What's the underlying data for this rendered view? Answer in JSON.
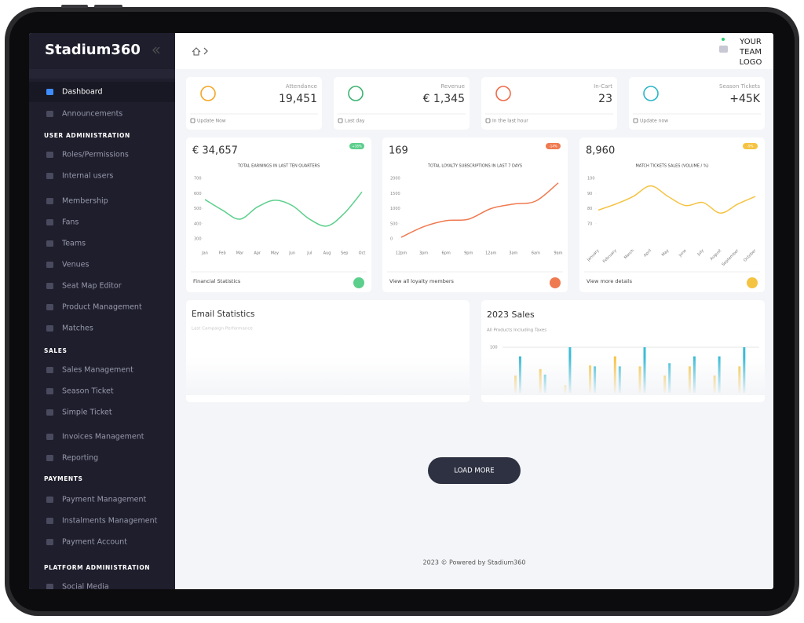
{
  "sidebar": {
    "logo": "Stadium360",
    "items": [
      {
        "label": "Dashboard",
        "active": true
      },
      {
        "label": "Announcements"
      },
      {
        "heading": "USER ADMINISTRATION"
      },
      {
        "label": "Roles/Permissions"
      },
      {
        "label": "Internal users"
      },
      {
        "label": "Membership"
      },
      {
        "label": "Fans"
      },
      {
        "label": "Teams"
      },
      {
        "label": "Venues"
      },
      {
        "label": "Seat Map Editor"
      },
      {
        "label": "Product Management"
      },
      {
        "label": "Matches"
      },
      {
        "heading": "SALES"
      },
      {
        "label": "Sales Management"
      },
      {
        "label": "Season Ticket"
      },
      {
        "label": "Simple Ticket"
      },
      {
        "label": "Invoices Management"
      },
      {
        "label": "Reporting"
      },
      {
        "heading": "PAYMENTS"
      },
      {
        "label": "Payment Management"
      },
      {
        "label": "Instalments Management"
      },
      {
        "label": "Payment Account"
      },
      {
        "heading": "PLATFORM ADMINISTRATION"
      },
      {
        "label": "Social Media"
      }
    ]
  },
  "topbar": {
    "logo_lines": [
      "YOUR",
      "TEAM",
      "LOGO"
    ]
  },
  "stat_cards": [
    {
      "label": "Attendance",
      "value": "19,451",
      "footer": "Update Now",
      "color": "#f5a623"
    },
    {
      "label": "Revenue",
      "value": "€ 1,345",
      "footer": "Last day",
      "color": "#3cb371"
    },
    {
      "label": "In-Cart",
      "value": "23",
      "footer": "In the last hour",
      "color": "#ef6b4a"
    },
    {
      "label": "Season Tickets",
      "value": "+45K",
      "footer": "Update now",
      "color": "#2bb5c9"
    }
  ],
  "chart_cards": [
    {
      "value": "€ 34,657",
      "badge": "+18%",
      "footer": "Financial Statistics"
    },
    {
      "value": "169",
      "badge": "-14%",
      "footer": "View all loyalty members"
    },
    {
      "value": "8,960",
      "badge": "-9%",
      "footer": "View more details"
    }
  ],
  "chart_data": [
    {
      "type": "line",
      "title": "TOTAL EARNINGS IN LAST TEN QUARTERS",
      "categories": [
        "Jan",
        "Feb",
        "Mar",
        "Apr",
        "May",
        "Jun",
        "Jul",
        "Aug",
        "Sep",
        "Oct"
      ],
      "values": [
        560,
        490,
        430,
        510,
        555,
        520,
        430,
        385,
        470,
        610
      ],
      "color": "#5ccf8c",
      "ylim": [
        300,
        700
      ],
      "yticks": [
        700,
        600,
        500,
        400,
        300
      ]
    },
    {
      "type": "line",
      "title": "TOTAL LOYALTY SUBSCRIPTIONS IN LAST 7 DAYS",
      "categories": [
        "12pm",
        "3pm",
        "6pm",
        "9pm",
        "12am",
        "3am",
        "6am",
        "9am"
      ],
      "values": [
        50,
        400,
        600,
        650,
        1000,
        1150,
        1250,
        1850
      ],
      "color": "#ef7a50",
      "ylim": [
        0,
        2000
      ],
      "yticks": [
        2000,
        1500,
        1000,
        500,
        0
      ]
    },
    {
      "type": "line",
      "title": "MATCH TICKETS SALES (VOLUME / %)",
      "categories": [
        "January",
        "February",
        "March",
        "April",
        "May",
        "June",
        "July",
        "August",
        "September",
        "October"
      ],
      "values": [
        79,
        83,
        88,
        95,
        88,
        82,
        84,
        77,
        83,
        88
      ],
      "color": "#f5c342",
      "ylim": [
        60,
        100
      ],
      "yticks": [
        100,
        90,
        80,
        70
      ],
      "rotate_labels": true
    },
    {
      "type": "bar",
      "title": "2023 Sales",
      "subtitle": "All Products Including Taxes",
      "categories": [
        null,
        null,
        null,
        null,
        null,
        null,
        null,
        null,
        null,
        null
      ],
      "series": [
        {
          "color": "#f5c342",
          "values": [
            38,
            52,
            17,
            60,
            80,
            58,
            38,
            58,
            38,
            58
          ]
        },
        {
          "color": "#3bbcd6",
          "values": [
            80,
            40,
            100,
            58,
            58,
            100,
            65,
            80,
            80,
            100
          ]
        }
      ],
      "ylim": [
        0,
        100
      ],
      "yticks": [
        100
      ],
      "grid": true
    }
  ],
  "email_card": {
    "title": "Email Statistics",
    "subtitle": "Last Campaign Performance"
  },
  "load_more": "LOAD MORE",
  "footer": "2023 © Powered by Stadium360"
}
